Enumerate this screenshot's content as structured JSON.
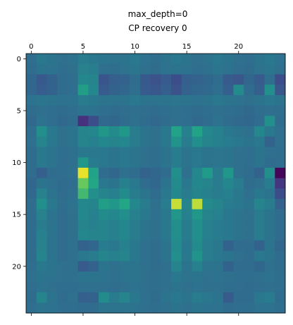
{
  "chart_data": {
    "type": "heatmap",
    "title_lines": [
      "max_depth=0",
      "CP recovery 0"
    ],
    "colormap": "viridis",
    "n_rows": 25,
    "n_cols": 25,
    "x_ticks": [
      0,
      5,
      10,
      15,
      20
    ],
    "y_ticks": [
      0,
      5,
      10,
      15,
      20
    ],
    "x_tick_position": "top",
    "x_tick_labels_shown": true,
    "bottom_tick_labels_shown": false,
    "grid": false,
    "legend": "none",
    "vmin": 0,
    "vmax": 1,
    "values": [
      [
        0.45,
        0.5,
        0.48,
        0.46,
        0.47,
        0.52,
        0.5,
        0.49,
        0.47,
        0.48,
        0.5,
        0.47,
        0.45,
        0.48,
        0.5,
        0.48,
        0.46,
        0.47,
        0.5,
        0.48,
        0.46,
        0.45,
        0.48,
        0.5,
        0.47
      ],
      [
        0.44,
        0.48,
        0.47,
        0.45,
        0.46,
        0.55,
        0.53,
        0.46,
        0.45,
        0.47,
        0.49,
        0.46,
        0.44,
        0.47,
        0.48,
        0.47,
        0.45,
        0.46,
        0.49,
        0.47,
        0.45,
        0.44,
        0.47,
        0.49,
        0.46
      ],
      [
        0.42,
        0.35,
        0.4,
        0.44,
        0.45,
        0.58,
        0.56,
        0.33,
        0.38,
        0.4,
        0.44,
        0.35,
        0.32,
        0.36,
        0.3,
        0.38,
        0.4,
        0.42,
        0.44,
        0.36,
        0.34,
        0.42,
        0.36,
        0.45,
        0.3
      ],
      [
        0.42,
        0.37,
        0.4,
        0.44,
        0.45,
        0.7,
        0.58,
        0.36,
        0.4,
        0.42,
        0.45,
        0.36,
        0.34,
        0.38,
        0.32,
        0.4,
        0.42,
        0.43,
        0.45,
        0.38,
        0.6,
        0.44,
        0.38,
        0.62,
        0.34
      ],
      [
        0.47,
        0.49,
        0.48,
        0.47,
        0.47,
        0.52,
        0.5,
        0.48,
        0.47,
        0.48,
        0.5,
        0.48,
        0.47,
        0.48,
        0.49,
        0.48,
        0.47,
        0.48,
        0.5,
        0.48,
        0.47,
        0.46,
        0.48,
        0.5,
        0.48
      ],
      [
        0.44,
        0.46,
        0.45,
        0.44,
        0.45,
        0.48,
        0.47,
        0.45,
        0.44,
        0.45,
        0.46,
        0.45,
        0.44,
        0.45,
        0.46,
        0.45,
        0.44,
        0.45,
        0.46,
        0.45,
        0.44,
        0.43,
        0.45,
        0.46,
        0.45
      ],
      [
        0.43,
        0.47,
        0.45,
        0.43,
        0.44,
        0.18,
        0.3,
        0.43,
        0.42,
        0.44,
        0.46,
        0.44,
        0.43,
        0.44,
        0.46,
        0.45,
        0.43,
        0.44,
        0.47,
        0.44,
        0.43,
        0.42,
        0.44,
        0.62,
        0.44
      ],
      [
        0.45,
        0.62,
        0.5,
        0.46,
        0.48,
        0.56,
        0.58,
        0.66,
        0.6,
        0.66,
        0.52,
        0.48,
        0.46,
        0.5,
        0.72,
        0.54,
        0.72,
        0.58,
        0.54,
        0.5,
        0.48,
        0.46,
        0.58,
        0.5,
        0.46
      ],
      [
        0.46,
        0.56,
        0.5,
        0.46,
        0.48,
        0.56,
        0.54,
        0.58,
        0.56,
        0.58,
        0.52,
        0.48,
        0.46,
        0.5,
        0.64,
        0.52,
        0.62,
        0.56,
        0.54,
        0.52,
        0.5,
        0.48,
        0.5,
        0.4,
        0.46
      ],
      [
        0.44,
        0.5,
        0.48,
        0.45,
        0.46,
        0.5,
        0.5,
        0.5,
        0.48,
        0.5,
        0.48,
        0.46,
        0.45,
        0.48,
        0.52,
        0.48,
        0.5,
        0.48,
        0.49,
        0.48,
        0.46,
        0.45,
        0.48,
        0.46,
        0.45
      ],
      [
        0.44,
        0.5,
        0.48,
        0.45,
        0.46,
        0.66,
        0.52,
        0.5,
        0.48,
        0.5,
        0.48,
        0.46,
        0.45,
        0.48,
        0.52,
        0.48,
        0.5,
        0.48,
        0.49,
        0.48,
        0.46,
        0.45,
        0.48,
        0.44,
        0.45
      ],
      [
        0.44,
        0.38,
        0.44,
        0.45,
        0.46,
        0.98,
        0.72,
        0.44,
        0.42,
        0.46,
        0.44,
        0.4,
        0.42,
        0.44,
        0.62,
        0.46,
        0.58,
        0.68,
        0.52,
        0.66,
        0.46,
        0.44,
        0.4,
        0.62,
        0.02
      ],
      [
        0.42,
        0.48,
        0.46,
        0.44,
        0.45,
        0.85,
        0.74,
        0.5,
        0.48,
        0.54,
        0.5,
        0.44,
        0.42,
        0.48,
        0.6,
        0.5,
        0.58,
        0.56,
        0.52,
        0.58,
        0.52,
        0.44,
        0.46,
        0.52,
        0.2
      ],
      [
        0.43,
        0.55,
        0.48,
        0.44,
        0.46,
        0.8,
        0.62,
        0.56,
        0.54,
        0.6,
        0.52,
        0.48,
        0.44,
        0.5,
        0.58,
        0.52,
        0.56,
        0.54,
        0.52,
        0.54,
        0.5,
        0.46,
        0.5,
        0.48,
        0.3
      ],
      [
        0.44,
        0.62,
        0.5,
        0.45,
        0.47,
        0.58,
        0.56,
        0.7,
        0.66,
        0.74,
        0.58,
        0.52,
        0.46,
        0.52,
        0.95,
        0.56,
        0.94,
        0.6,
        0.56,
        0.52,
        0.5,
        0.48,
        0.56,
        0.52,
        0.4
      ],
      [
        0.44,
        0.55,
        0.48,
        0.44,
        0.46,
        0.58,
        0.54,
        0.6,
        0.58,
        0.62,
        0.54,
        0.5,
        0.46,
        0.5,
        0.66,
        0.54,
        0.66,
        0.56,
        0.54,
        0.5,
        0.48,
        0.46,
        0.52,
        0.48,
        0.44
      ],
      [
        0.44,
        0.52,
        0.48,
        0.44,
        0.46,
        0.56,
        0.54,
        0.56,
        0.54,
        0.58,
        0.52,
        0.48,
        0.46,
        0.5,
        0.62,
        0.52,
        0.62,
        0.54,
        0.52,
        0.5,
        0.48,
        0.46,
        0.52,
        0.48,
        0.44
      ],
      [
        0.44,
        0.54,
        0.48,
        0.44,
        0.46,
        0.58,
        0.56,
        0.56,
        0.54,
        0.58,
        0.52,
        0.48,
        0.46,
        0.5,
        0.62,
        0.52,
        0.62,
        0.54,
        0.52,
        0.5,
        0.48,
        0.46,
        0.52,
        0.48,
        0.44
      ],
      [
        0.44,
        0.55,
        0.48,
        0.44,
        0.46,
        0.4,
        0.42,
        0.52,
        0.5,
        0.54,
        0.5,
        0.46,
        0.44,
        0.48,
        0.6,
        0.5,
        0.6,
        0.52,
        0.5,
        0.4,
        0.44,
        0.44,
        0.4,
        0.48,
        0.42
      ],
      [
        0.44,
        0.56,
        0.48,
        0.44,
        0.46,
        0.5,
        0.52,
        0.56,
        0.54,
        0.56,
        0.5,
        0.46,
        0.44,
        0.48,
        0.62,
        0.5,
        0.64,
        0.52,
        0.5,
        0.48,
        0.46,
        0.44,
        0.5,
        0.48,
        0.44
      ],
      [
        0.45,
        0.5,
        0.48,
        0.46,
        0.46,
        0.36,
        0.4,
        0.48,
        0.46,
        0.48,
        0.48,
        0.46,
        0.44,
        0.46,
        0.56,
        0.48,
        0.54,
        0.48,
        0.48,
        0.4,
        0.44,
        0.44,
        0.42,
        0.46,
        0.44
      ],
      [
        0.46,
        0.48,
        0.47,
        0.46,
        0.46,
        0.48,
        0.48,
        0.47,
        0.46,
        0.47,
        0.48,
        0.46,
        0.45,
        0.46,
        0.5,
        0.47,
        0.48,
        0.46,
        0.47,
        0.46,
        0.45,
        0.45,
        0.46,
        0.47,
        0.45
      ],
      [
        0.45,
        0.47,
        0.46,
        0.45,
        0.45,
        0.46,
        0.46,
        0.46,
        0.45,
        0.46,
        0.47,
        0.46,
        0.45,
        0.46,
        0.48,
        0.46,
        0.47,
        0.46,
        0.46,
        0.45,
        0.45,
        0.44,
        0.45,
        0.46,
        0.45
      ],
      [
        0.44,
        0.56,
        0.48,
        0.44,
        0.46,
        0.38,
        0.4,
        0.6,
        0.52,
        0.56,
        0.5,
        0.46,
        0.44,
        0.48,
        0.5,
        0.48,
        0.52,
        0.5,
        0.48,
        0.36,
        0.44,
        0.44,
        0.5,
        0.52,
        0.44
      ],
      [
        0.45,
        0.48,
        0.47,
        0.45,
        0.45,
        0.44,
        0.44,
        0.48,
        0.47,
        0.48,
        0.47,
        0.46,
        0.45,
        0.46,
        0.48,
        0.46,
        0.48,
        0.47,
        0.47,
        0.44,
        0.45,
        0.45,
        0.47,
        0.47,
        0.45
      ]
    ]
  }
}
